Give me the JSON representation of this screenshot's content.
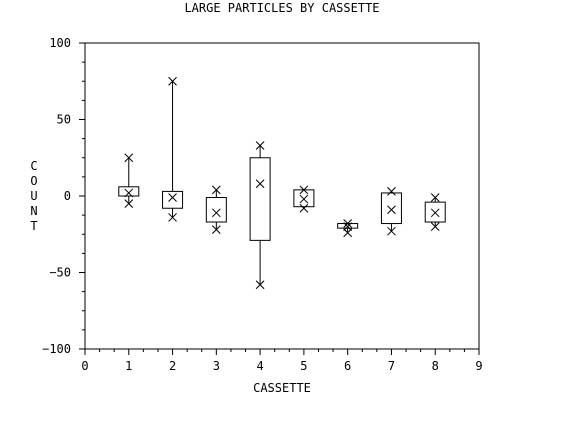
{
  "chart_data": {
    "type": "box",
    "title": "LARGE PARTICLES BY CASSETTE",
    "xlabel": "CASSETTE",
    "ylabel": "COUNT",
    "xlim": [
      0,
      9
    ],
    "ylim": [
      -100,
      100
    ],
    "x_ticks": [
      "0",
      "1",
      "2",
      "3",
      "4",
      "5",
      "6",
      "7",
      "8",
      "9"
    ],
    "y_ticks": [
      "100",
      "50",
      "0",
      "−50",
      "−100"
    ],
    "y_tick_values": [
      100,
      50,
      0,
      -50,
      -100
    ],
    "x_tick_values": [
      0,
      1,
      2,
      3,
      4,
      5,
      6,
      7,
      8,
      9
    ],
    "grid": false,
    "boxes": [
      {
        "x": 1,
        "min": -5,
        "q1": 0,
        "median": 2,
        "q3": 6,
        "max": 25
      },
      {
        "x": 2,
        "min": -14,
        "q1": -8,
        "median": -1,
        "q3": 3,
        "max": 75
      },
      {
        "x": 3,
        "min": -22,
        "q1": -17,
        "median": -11,
        "q3": -1,
        "max": 4
      },
      {
        "x": 4,
        "min": -58,
        "q1": -29,
        "median": 8,
        "q3": 25,
        "max": 33
      },
      {
        "x": 5,
        "min": -8,
        "q1": -7,
        "median": -2,
        "q3": 4,
        "max": 4
      },
      {
        "x": 6,
        "min": -24,
        "q1": -21,
        "median": -20,
        "q3": -18,
        "max": -18
      },
      {
        "x": 7,
        "min": -23,
        "q1": -18,
        "median": -9,
        "q3": 2,
        "max": 3
      },
      {
        "x": 8,
        "min": -20,
        "q1": -17,
        "median": -11,
        "q3": -4,
        "max": -1
      }
    ]
  }
}
